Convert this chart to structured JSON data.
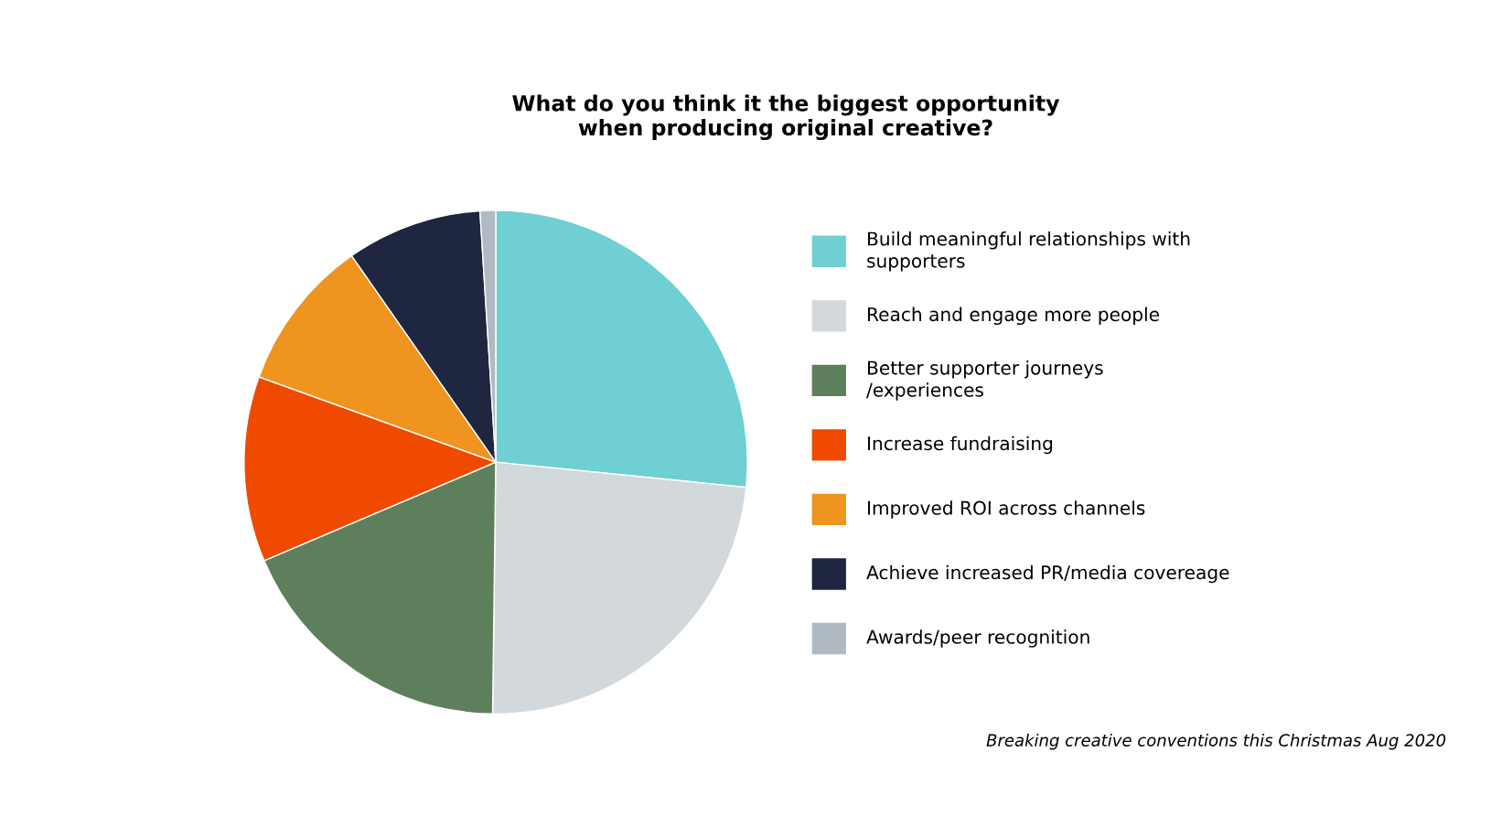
{
  "chart_data": {
    "type": "pie",
    "title": "What do you think it the biggest opportunity\nwhen producing original creative?",
    "categories": [
      "Build meaningful relationships with supporters",
      "Reach and engage more people",
      "Better supporter journeys /experiences",
      "Increase fundraising",
      "Improved ROI across channels",
      "Achieve increased PR/media covereage",
      "Awards/peer recognition"
    ],
    "values": [
      26.6,
      23.6,
      18.4,
      11.9,
      9.8,
      8.7,
      1.0
    ],
    "colors": [
      "#6fcfd3",
      "#d3d8dc",
      "#5e7f5b",
      "#ef4a00",
      "#ee941f",
      "#1f2640",
      "#b0bac3"
    ],
    "legend": "right",
    "annotations": [
      "Breaking creative conventions this Christmas Aug 2020"
    ]
  }
}
